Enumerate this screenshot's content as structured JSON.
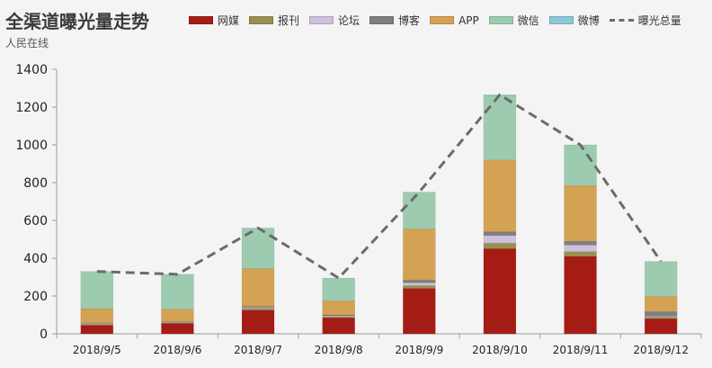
{
  "header": {
    "title": "全渠道曝光量走势",
    "subtitle": "人民在线"
  },
  "chart_data": {
    "type": "bar",
    "title": "全渠道曝光量走势",
    "subtitle": "人民在线",
    "categories": [
      "2018/9/5",
      "2018/9/6",
      "2018/9/7",
      "2018/9/8",
      "2018/9/9",
      "2018/9/10",
      "2018/9/11",
      "2018/9/12"
    ],
    "ylim": [
      0,
      1400
    ],
    "yticks": [
      0,
      200,
      400,
      600,
      800,
      1000,
      1200,
      1400
    ],
    "grid": false,
    "legend_position": "top",
    "stacked": true,
    "series": [
      {
        "name": "网媒",
        "color": "#a51c14",
        "values": [
          45,
          55,
          125,
          85,
          240,
          450,
          410,
          80
        ]
      },
      {
        "name": "报刊",
        "color": "#9a8f4e",
        "values": [
          5,
          3,
          10,
          5,
          15,
          30,
          25,
          8
        ]
      },
      {
        "name": "论坛",
        "color": "#cdc1dd",
        "values": [
          5,
          3,
          5,
          5,
          15,
          40,
          35,
          5
        ]
      },
      {
        "name": "博客",
        "color": "#7f7f7f",
        "values": [
          3,
          3,
          5,
          5,
          15,
          20,
          20,
          25
        ]
      },
      {
        "name": "APP",
        "color": "#d4a253",
        "values": [
          75,
          66,
          200,
          75,
          270,
          380,
          295,
          80
        ]
      },
      {
        "name": "微信",
        "color": "#9dcbb0",
        "values": [
          197,
          185,
          215,
          120,
          195,
          340,
          215,
          185
        ]
      },
      {
        "name": "微博",
        "color": "#8ec8d8",
        "values": [
          0,
          0,
          0,
          0,
          0,
          5,
          0,
          0
        ]
      }
    ],
    "line_series": {
      "name": "曝光总量",
      "color": "#6b6b6b",
      "values": [
        330,
        315,
        560,
        295,
        750,
        1265,
        1000,
        383
      ]
    }
  }
}
